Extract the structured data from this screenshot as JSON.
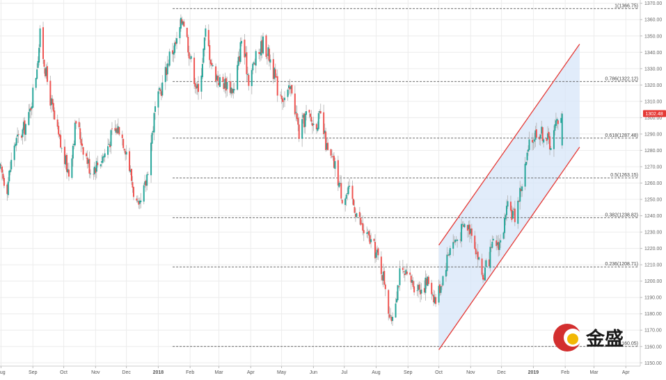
{
  "chart_data": {
    "type": "candlestick",
    "y_axis": {
      "position": "right",
      "range": [
        1148,
        1372
      ],
      "ticks": [
        1150,
        1160,
        1170,
        1180,
        1190,
        1200,
        1210,
        1220,
        1230,
        1240,
        1250,
        1260,
        1270,
        1280,
        1290,
        1300,
        1310,
        1320,
        1330,
        1340,
        1350,
        1360,
        1370
      ],
      "tick_labels": [
        "1150.00",
        "1160.00",
        "1170.00",
        "1180.00",
        "1190.00",
        "1200.00",
        "1210.00",
        "1220.00",
        "1230.00",
        "1240.00",
        "1250.00",
        "1260.00",
        "1270.00",
        "1280.00",
        "1290.00",
        "1300.00",
        "1310.00",
        "1320.00",
        "1330.00",
        "1340.00",
        "1350.00",
        "1360.00",
        "1370.00"
      ]
    },
    "x_axis": {
      "range": [
        "2017-07-31",
        "2019-04-15"
      ],
      "ticks": [
        {
          "label": "Aug",
          "date": "2017-08-01"
        },
        {
          "label": "Sep",
          "date": "2017-09-01"
        },
        {
          "label": "Oct",
          "date": "2017-10-01"
        },
        {
          "label": "Nov",
          "date": "2017-11-01"
        },
        {
          "label": "Dec",
          "date": "2017-12-01"
        },
        {
          "label": "2018",
          "date": "2018-01-01"
        },
        {
          "label": "Feb",
          "date": "2018-02-01"
        },
        {
          "label": "Mar",
          "date": "2018-03-01"
        },
        {
          "label": "Apr",
          "date": "2018-04-01"
        },
        {
          "label": "May",
          "date": "2018-05-01"
        },
        {
          "label": "Jun",
          "date": "2018-06-01"
        },
        {
          "label": "Jul",
          "date": "2018-07-01"
        },
        {
          "label": "Aug",
          "date": "2018-08-01"
        },
        {
          "label": "Sep",
          "date": "2018-09-01"
        },
        {
          "label": "Oct",
          "date": "2018-10-01"
        },
        {
          "label": "Nov",
          "date": "2018-11-01"
        },
        {
          "label": "Dec",
          "date": "2018-12-01"
        },
        {
          "label": "2019",
          "date": "2019-01-01"
        },
        {
          "label": "Feb",
          "date": "2019-02-01"
        },
        {
          "label": "Mar",
          "date": "2019-03-01"
        },
        {
          "label": "Apr",
          "date": "2019-04-01"
        }
      ]
    },
    "price_path": [
      [
        "2017-07-31",
        1268
      ],
      [
        "2017-08-07",
        1258
      ],
      [
        "2017-08-14",
        1284
      ],
      [
        "2017-08-21",
        1290
      ],
      [
        "2017-08-28",
        1300
      ],
      [
        "2017-09-04",
        1327
      ],
      [
        "2017-09-08",
        1350
      ],
      [
        "2017-09-15",
        1322
      ],
      [
        "2017-09-22",
        1298
      ],
      [
        "2017-09-29",
        1280
      ],
      [
        "2017-10-06",
        1266
      ],
      [
        "2017-10-13",
        1298
      ],
      [
        "2017-10-20",
        1282
      ],
      [
        "2017-10-27",
        1268
      ],
      [
        "2017-11-03",
        1272
      ],
      [
        "2017-11-10",
        1278
      ],
      [
        "2017-11-17",
        1290
      ],
      [
        "2017-11-24",
        1294
      ],
      [
        "2017-12-01",
        1280
      ],
      [
        "2017-12-08",
        1255
      ],
      [
        "2017-12-13",
        1242
      ],
      [
        "2017-12-20",
        1260
      ],
      [
        "2017-12-29",
        1305
      ],
      [
        "2018-01-05",
        1320
      ],
      [
        "2018-01-12",
        1338
      ],
      [
        "2018-01-19",
        1346
      ],
      [
        "2018-01-25",
        1362
      ],
      [
        "2018-02-02",
        1334
      ],
      [
        "2018-02-09",
        1314
      ],
      [
        "2018-02-16",
        1352
      ],
      [
        "2018-02-23",
        1330
      ],
      [
        "2018-03-02",
        1322
      ],
      [
        "2018-03-09",
        1321
      ],
      [
        "2018-03-16",
        1316
      ],
      [
        "2018-03-23",
        1348
      ],
      [
        "2018-03-30",
        1324
      ],
      [
        "2018-04-06",
        1336
      ],
      [
        "2018-04-13",
        1346
      ],
      [
        "2018-04-20",
        1336
      ],
      [
        "2018-04-27",
        1318
      ],
      [
        "2018-05-04",
        1312
      ],
      [
        "2018-05-11",
        1318
      ],
      [
        "2018-05-18",
        1290
      ],
      [
        "2018-05-25",
        1302
      ],
      [
        "2018-06-01",
        1296
      ],
      [
        "2018-06-08",
        1300
      ],
      [
        "2018-06-15",
        1278
      ],
      [
        "2018-06-22",
        1270
      ],
      [
        "2018-06-29",
        1252
      ],
      [
        "2018-07-06",
        1254
      ],
      [
        "2018-07-13",
        1242
      ],
      [
        "2018-07-20",
        1230
      ],
      [
        "2018-07-27",
        1224
      ],
      [
        "2018-08-03",
        1214
      ],
      [
        "2018-08-10",
        1198
      ],
      [
        "2018-08-15",
        1174
      ],
      [
        "2018-08-24",
        1204
      ],
      [
        "2018-08-31",
        1202
      ],
      [
        "2018-09-07",
        1198
      ],
      [
        "2018-09-14",
        1196
      ],
      [
        "2018-09-21",
        1200
      ],
      [
        "2018-09-28",
        1188
      ],
      [
        "2018-10-05",
        1203
      ],
      [
        "2018-10-12",
        1222
      ],
      [
        "2018-10-19",
        1226
      ],
      [
        "2018-10-26",
        1234
      ],
      [
        "2018-11-02",
        1232
      ],
      [
        "2018-11-09",
        1212
      ],
      [
        "2018-11-13",
        1202
      ],
      [
        "2018-11-23",
        1222
      ],
      [
        "2018-11-30",
        1224
      ],
      [
        "2018-12-07",
        1244
      ],
      [
        "2018-12-14",
        1240
      ],
      [
        "2018-12-21",
        1260
      ],
      [
        "2018-12-28",
        1282
      ],
      [
        "2019-01-04",
        1292
      ],
      [
        "2019-01-11",
        1290
      ],
      [
        "2019-01-18",
        1284
      ],
      [
        "2019-01-25",
        1300
      ],
      [
        "2019-01-29",
        1304
      ]
    ],
    "fibonacci_levels": [
      {
        "label": "1(1366.75)",
        "value": 1366.75
      },
      {
        "label": "0.786(1322.12)",
        "value": 1322.12
      },
      {
        "label": "0.618(1287.48)",
        "value": 1287.48
      },
      {
        "label": "0.5(1263.15)",
        "value": 1263.15
      },
      {
        "label": "0.382(1238.82)",
        "value": 1238.82
      },
      {
        "label": "0.236(1208.71)",
        "value": 1208.71
      },
      {
        "label": "0(1160.05)",
        "value": 1160.05
      }
    ],
    "fib_line_start": "2018-01-15",
    "channel": {
      "upper": [
        [
          "2018-10-01",
          1222
        ],
        [
          "2019-02-15",
          1345
        ]
      ],
      "lower": [
        [
          "2018-10-01",
          1158
        ],
        [
          "2019-02-15",
          1282
        ]
      ]
    },
    "last_price": {
      "label": "1302.48",
      "value": 1302.48
    },
    "colors": {
      "up": "#26a69a",
      "down": "#ef5350",
      "wick": "#b0b0b0",
      "channel_line": "#e53935",
      "channel_fill": "#d7e6f8",
      "fib_line": "#555555",
      "grid": "#ececec",
      "price_tag": "#e53935"
    }
  },
  "logo": {
    "text": "金盛",
    "mark_colors": [
      "#d32f2f",
      "#f2b705"
    ]
  }
}
